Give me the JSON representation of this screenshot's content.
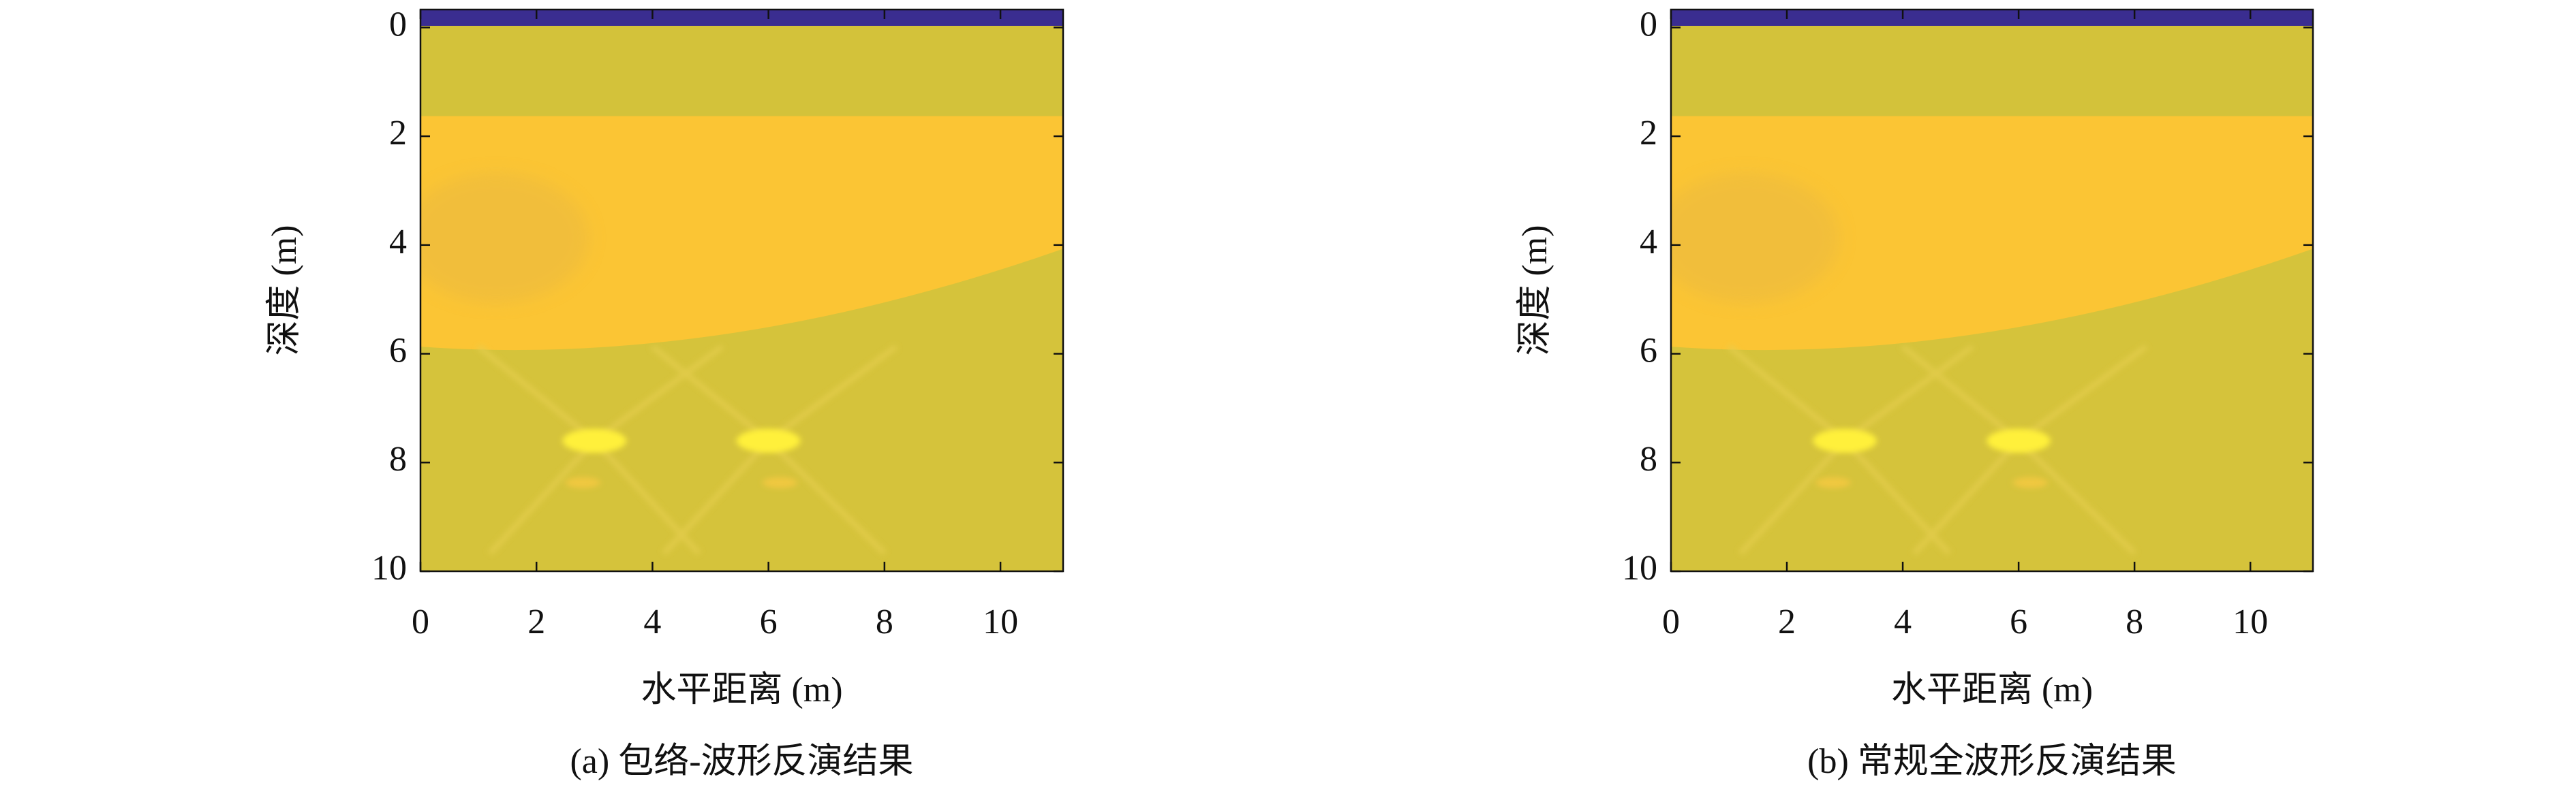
{
  "chart_data": [
    {
      "type": "heatmap",
      "caption": "(a) 包络-波形反演结果",
      "xlabel": "水平距离 (m)",
      "ylabel": "深度 (m)",
      "xlim": [
        0,
        11.08
      ],
      "ylim": [
        10,
        -0.33
      ],
      "xticks": [
        0,
        2,
        4,
        6,
        8,
        10
      ],
      "yticks": [
        0,
        2,
        4,
        6,
        8,
        10
      ]
    },
    {
      "type": "heatmap",
      "caption": "(b) 常规全波形反演结果",
      "xlabel": "水平距离 (m)",
      "ylabel": "深度 (m)",
      "xlim": [
        0,
        11.08
      ],
      "ylim": [
        10,
        -0.33
      ],
      "xticks": [
        0,
        2,
        4,
        6,
        8,
        10
      ],
      "yticks": [
        0,
        2,
        4,
        6,
        8,
        10
      ]
    }
  ]
}
